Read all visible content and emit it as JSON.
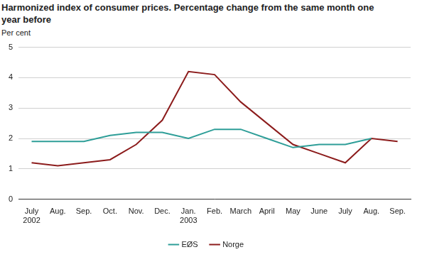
{
  "chart_data": {
    "type": "line",
    "title": "Harmonized index of consumer prices. Percentage change from the same month one year before",
    "y_label": "Per cent",
    "categories": [
      "July 2002",
      "Aug.",
      "Sep.",
      "Oct.",
      "Nov.",
      "Dec.",
      "Jan. 2003",
      "Feb.",
      "March",
      "April",
      "May",
      "June",
      "July",
      "Aug.",
      "Sep."
    ],
    "series": [
      {
        "name": "EØS",
        "color": "#2e9e98",
        "values": [
          1.9,
          1.9,
          1.9,
          2.1,
          2.2,
          2.2,
          2.0,
          2.3,
          2.3,
          2.0,
          1.7,
          1.8,
          1.8,
          2.0,
          null
        ]
      },
      {
        "name": "Norge",
        "color": "#8c1c1c",
        "values": [
          1.2,
          1.1,
          1.2,
          1.3,
          1.8,
          2.6,
          4.2,
          4.1,
          3.2,
          2.5,
          1.8,
          1.5,
          1.2,
          2.0,
          1.9
        ]
      }
    ],
    "ylim": [
      0,
      5
    ],
    "yticks": [
      0,
      1,
      2,
      3,
      4,
      5
    ],
    "grid": true,
    "legend": "bottom"
  }
}
